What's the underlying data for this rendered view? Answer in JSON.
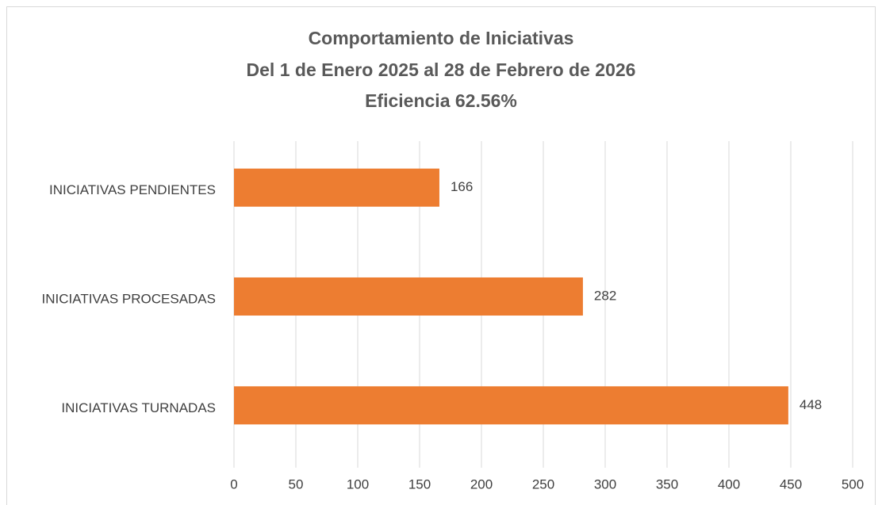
{
  "chart_data": {
    "type": "bar",
    "orientation": "horizontal",
    "title": [
      "Comportamiento de Iniciativas",
      "Del 1 de Enero 2025 al 28 de Febrero de 2026",
      "Eficiencia 62.56%"
    ],
    "categories": [
      "INICIATIVAS PENDIENTES",
      "INICIATIVAS PROCESADAS",
      "INICIATIVAS TURNADAS"
    ],
    "values": [
      166,
      282,
      448
    ],
    "color": "#ed7d31",
    "xlim": [
      0,
      500
    ],
    "xticks": [
      0,
      50,
      100,
      150,
      200,
      250,
      300,
      350,
      400,
      450,
      500
    ],
    "grid": true
  }
}
